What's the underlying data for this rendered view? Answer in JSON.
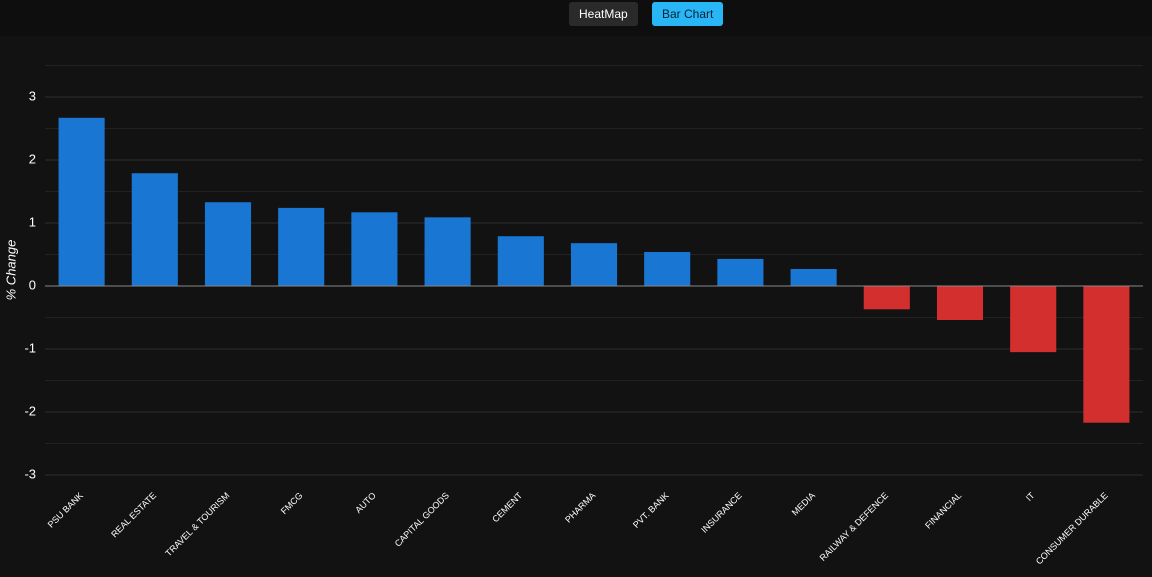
{
  "toolbar": {
    "buttons": [
      "HeatMap",
      "Bar Chart"
    ],
    "active": 1
  },
  "chart_data": {
    "type": "bar",
    "y_label": "% Change",
    "categories": [
      "PSU BANK",
      "REAL ESTATE",
      "TRAVEL & TOURISM",
      "FMCG",
      "AUTO",
      "CAPITAL GOODS",
      "CEMENT",
      "PHARMA",
      "PVT. BANK",
      "INSURANCE",
      "MEDIA",
      "RAILWAY & DEFENCE",
      "FINANCIAL",
      "IT",
      "CONSUMER DURABLE"
    ],
    "values": [
      2.67,
      1.79,
      1.33,
      1.24,
      1.17,
      1.09,
      0.79,
      0.68,
      0.54,
      0.43,
      0.27,
      -0.37,
      -0.54,
      -1.05,
      -2.17
    ],
    "positive_color": "#1976d2",
    "negative_color": "#d32f2f",
    "ylim": [
      -3,
      3.5
    ],
    "yticks": [
      -3,
      -2,
      -1,
      0,
      1,
      2,
      3
    ],
    "grid": true
  }
}
